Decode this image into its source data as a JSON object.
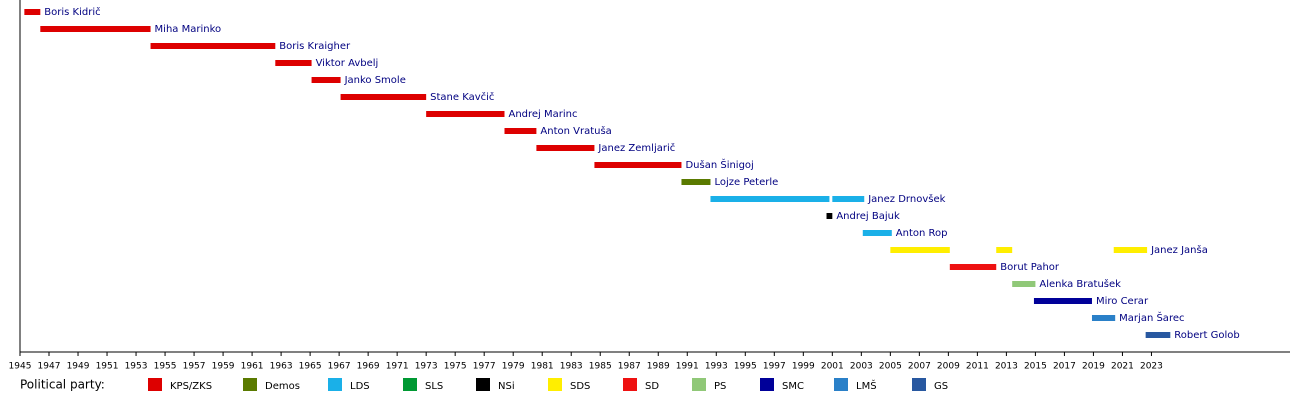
{
  "chart_data": {
    "type": "timeline",
    "xlim": [
      1945,
      2032
    ],
    "xticks": [
      1945,
      1947,
      1949,
      1951,
      1953,
      1955,
      1957,
      1959,
      1961,
      1963,
      1965,
      1967,
      1969,
      1971,
      1973,
      1975,
      1977,
      1979,
      1981,
      1983,
      1985,
      1987,
      1989,
      1991,
      1993,
      1995,
      1997,
      1999,
      2001,
      2003,
      2005,
      2007,
      2009,
      2011,
      2013,
      2015,
      2017,
      2019,
      2021,
      2023
    ],
    "legend_title": "Political party:",
    "parties": [
      {
        "name": "KPS/ZKS",
        "color": "#dd0000"
      },
      {
        "name": "Demos",
        "color": "#5a7a00"
      },
      {
        "name": "LDS",
        "color": "#1ab0e8"
      },
      {
        "name": "SLS",
        "color": "#009933"
      },
      {
        "name": "NSi",
        "color": "#000000"
      },
      {
        "name": "SDS",
        "color": "#ffee00"
      },
      {
        "name": "SD",
        "color": "#ee1111"
      },
      {
        "name": "PS",
        "color": "#90c878"
      },
      {
        "name": "SMC",
        "color": "#000099"
      },
      {
        "name": "LMŠ",
        "color": "#2a80c8"
      },
      {
        "name": "GS",
        "color": "#2858a0"
      }
    ],
    "rows": [
      {
        "name": "Boris Kidrič",
        "segments": [
          {
            "start": 1945.3,
            "end": 1946.4,
            "color": "#dd0000"
          }
        ]
      },
      {
        "name": "Miha Marinko",
        "segments": [
          {
            "start": 1946.4,
            "end": 1954.0,
            "color": "#dd0000"
          }
        ]
      },
      {
        "name": "Boris Kraigher",
        "segments": [
          {
            "start": 1954.0,
            "end": 1962.6,
            "color": "#dd0000"
          }
        ]
      },
      {
        "name": "Viktor Avbelj",
        "segments": [
          {
            "start": 1962.6,
            "end": 1965.1,
            "color": "#dd0000"
          }
        ]
      },
      {
        "name": "Janko Smole",
        "segments": [
          {
            "start": 1965.1,
            "end": 1967.1,
            "color": "#dd0000"
          }
        ]
      },
      {
        "name": "Stane Kavčič",
        "segments": [
          {
            "start": 1967.1,
            "end": 1973.0,
            "color": "#dd0000"
          }
        ]
      },
      {
        "name": "Andrej Marinc",
        "segments": [
          {
            "start": 1973.0,
            "end": 1978.4,
            "color": "#dd0000"
          }
        ]
      },
      {
        "name": "Anton Vratuša",
        "segments": [
          {
            "start": 1978.4,
            "end": 1980.6,
            "color": "#dd0000"
          }
        ]
      },
      {
        "name": "Janez Zemljarič",
        "segments": [
          {
            "start": 1980.6,
            "end": 1984.6,
            "color": "#dd0000"
          }
        ]
      },
      {
        "name": "Dušan Šinigoj",
        "segments": [
          {
            "start": 1984.6,
            "end": 1990.6,
            "color": "#dd0000"
          }
        ]
      },
      {
        "name": "Lojze Peterle",
        "segments": [
          {
            "start": 1990.6,
            "end": 1992.6,
            "color": "#5a7a00"
          }
        ]
      },
      {
        "name": "Janez Drnovšek",
        "segments": [
          {
            "start": 1992.6,
            "end": 2000.8,
            "color": "#1ab0e8"
          },
          {
            "start": 2001.0,
            "end": 2003.2,
            "color": "#1ab0e8"
          }
        ]
      },
      {
        "name": "Andrej Bajuk",
        "segments": [
          {
            "start": 2000.6,
            "end": 2001.0,
            "color": "#000000"
          }
        ]
      },
      {
        "name": "Anton Rop",
        "segments": [
          {
            "start": 2003.1,
            "end": 2005.1,
            "color": "#1ab0e8"
          }
        ]
      },
      {
        "name": "Janez Janša",
        "segments": [
          {
            "start": 2005.0,
            "end": 2009.1,
            "color": "#ffee00"
          },
          {
            "start": 2012.3,
            "end": 2013.4,
            "color": "#ffee00"
          },
          {
            "start": 2020.4,
            "end": 2022.7,
            "color": "#ffee00"
          }
        ]
      },
      {
        "name": "Borut Pahor",
        "segments": [
          {
            "start": 2009.1,
            "end": 2012.3,
            "color": "#ee1111"
          }
        ]
      },
      {
        "name": "Alenka Bratušek",
        "segments": [
          {
            "start": 2013.4,
            "end": 2015.0,
            "color": "#90c878"
          }
        ]
      },
      {
        "name": "Miro Cerar",
        "segments": [
          {
            "start": 2014.9,
            "end": 2018.9,
            "color": "#000099"
          }
        ]
      },
      {
        "name": "Marjan Šarec",
        "segments": [
          {
            "start": 2018.9,
            "end": 2020.5,
            "color": "#2a80c8"
          }
        ]
      },
      {
        "name": "Robert Golob",
        "segments": [
          {
            "start": 2022.6,
            "end": 2024.3,
            "color": "#2858a0"
          }
        ]
      }
    ]
  }
}
